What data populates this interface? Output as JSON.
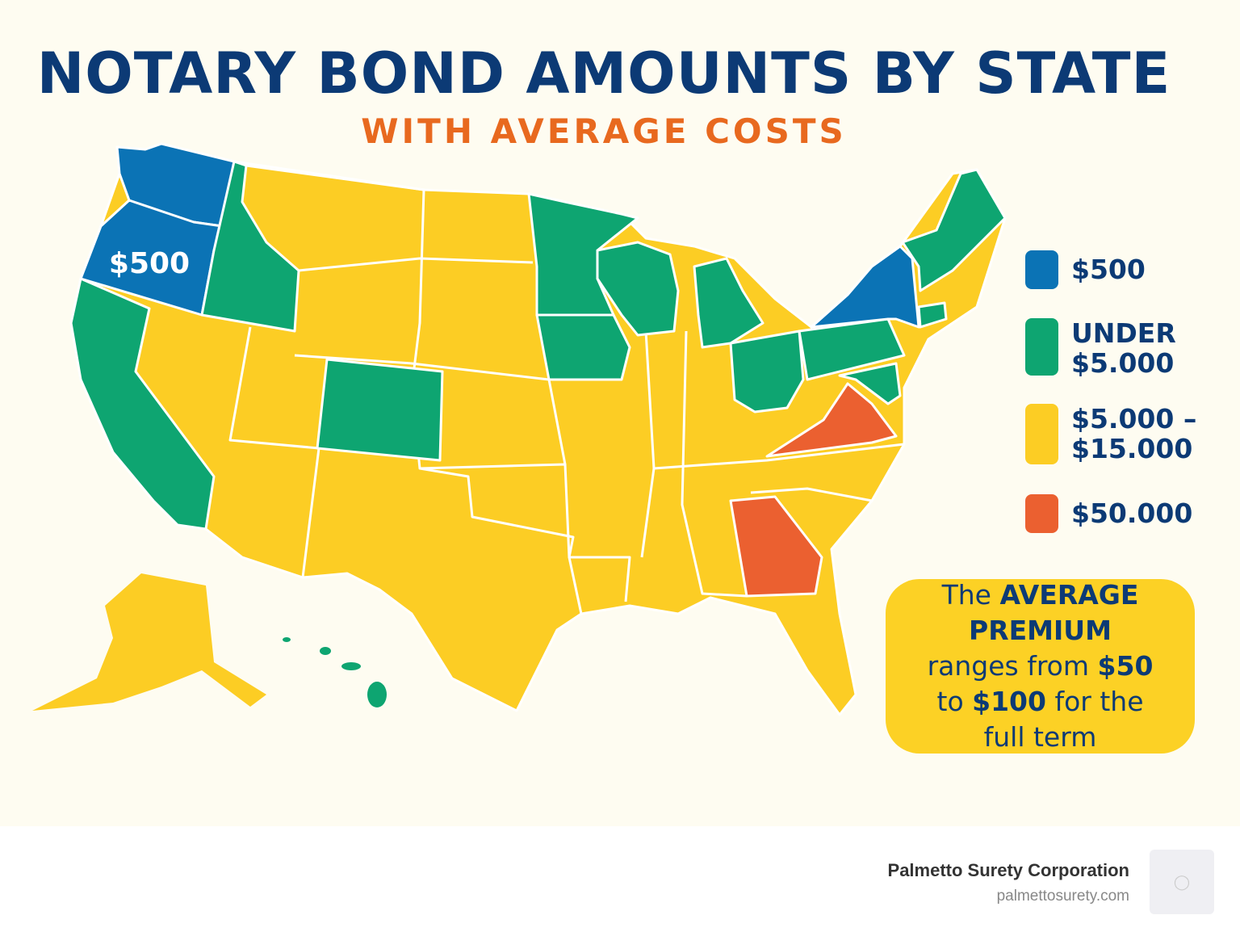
{
  "header": {
    "title": "NOTARY BOND AMOUNTS BY STATE",
    "subtitle": "WITH AVERAGE COSTS"
  },
  "map": {
    "map_label": "$500",
    "colors": {
      "blue": "#0b73b5",
      "green": "#0ea571",
      "yellow": "#fccd24",
      "orange": "#eb6030",
      "border": "#ffffff"
    },
    "categories": {
      "$500": [
        "Washington",
        "Oregon",
        "New York"
      ],
      "UNDER $5.000": [
        "California",
        "Idaho",
        "Colorado",
        "Minnesota",
        "Wisconsin",
        "Michigan",
        "Iowa",
        "Ohio",
        "Pennsylvania",
        "Maine",
        "New Hampshire",
        "Vermont",
        "Connecticut",
        "Maryland",
        "Delaware",
        "Hawaii"
      ],
      "$50.000": [
        "Virginia",
        "Georgia"
      ],
      "$5.000 - $15.000": [
        "all other states"
      ]
    }
  },
  "legend": {
    "items": [
      {
        "label_line1": "$500",
        "label_line2": "",
        "color": "#0b73b5"
      },
      {
        "label_line1": "UNDER",
        "label_line2": "$5.000",
        "color": "#0ea571"
      },
      {
        "label_line1": "$5.000 –",
        "label_line2": "$15.000",
        "color": "#fccd24"
      },
      {
        "label_line1": "$50.000",
        "label_line2": "",
        "color": "#eb6030"
      }
    ]
  },
  "callout": {
    "t1": "The ",
    "t2": "AVERAGE PREMIUM",
    "t3": " ranges from ",
    "t4": "$50",
    "t5": " to ",
    "t6": "$100",
    "t7": " for the full term"
  },
  "footer": {
    "company": "Palmetto Surety Corporation",
    "url": "palmettosurety.com",
    "logo_icon": "bear-logo-icon"
  }
}
